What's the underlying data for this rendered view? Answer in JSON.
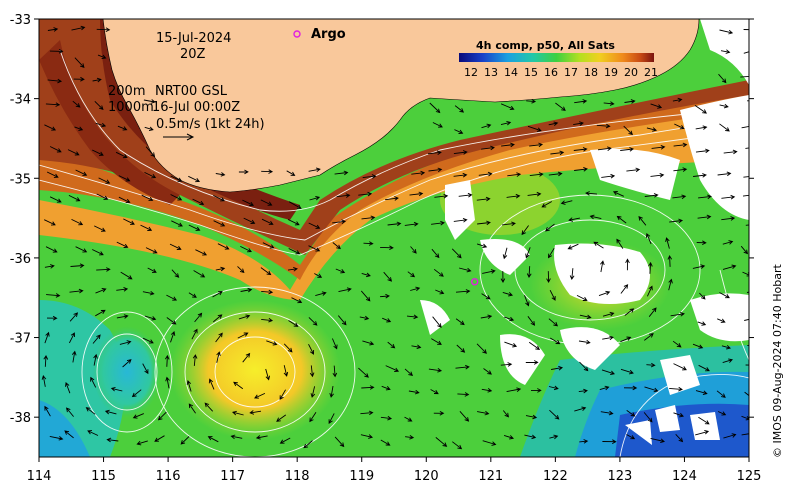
{
  "map": {
    "x_ticks": [
      "114",
      "115",
      "116",
      "117",
      "118",
      "119",
      "120",
      "121",
      "122",
      "123",
      "124",
      "125"
    ],
    "y_ticks": [
      "-33",
      "-34",
      "-35",
      "-36",
      "-37",
      "-38"
    ],
    "lon_range": [
      114,
      125
    ],
    "lat_range": [
      -38.5,
      -33
    ]
  },
  "annotations": {
    "date": "15-Jul-2024",
    "time": "20Z",
    "depth_shallow": "200m",
    "depth_deep": "1000m",
    "product": "NRT00 GSL",
    "current_time": "16-Jul 00:00Z",
    "scale_arrow": "0.5m/s (1kt 24h)"
  },
  "argo": {
    "label": "Argo",
    "marker_color": "#e020e0",
    "float_lon": 120.75,
    "float_lat": -36.3
  },
  "legend": {
    "title": "4h comp, p50, All Sats",
    "ticks": [
      "12",
      "13",
      "14",
      "15",
      "16",
      "17",
      "18",
      "19",
      "20",
      "21"
    ],
    "colors": [
      "#1a2a9a",
      "#1e5ad2",
      "#1ea0d8",
      "#2ec090",
      "#3ed040",
      "#a8e020",
      "#f0c020",
      "#f08020",
      "#c85014",
      "#8a1c10"
    ]
  },
  "credit": "© IMOS 09-Aug-2024 07:40 Hobart",
  "colors": {
    "land": "#f9c89b",
    "cloud": "#ffffff",
    "contour": "#ffffff",
    "vector": "#000000"
  }
}
